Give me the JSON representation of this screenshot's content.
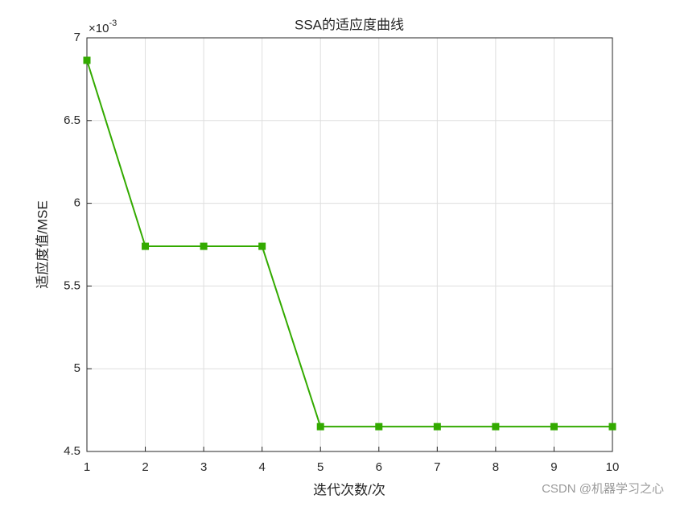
{
  "chart_data": {
    "type": "line",
    "title": "SSA的适应度曲线",
    "xlabel": "迭代次数/次",
    "ylabel": "适应度值/MSE",
    "y_multiplier": {
      "base": "×10",
      "power": "-3"
    },
    "x": [
      1,
      2,
      3,
      4,
      5,
      6,
      7,
      8,
      9,
      10
    ],
    "series": [
      {
        "name": "SSA",
        "color": "#33aa00",
        "marker": "square",
        "values": [
          6.864,
          5.74,
          5.74,
          5.74,
          4.65,
          4.65,
          4.65,
          4.65,
          4.65,
          4.65
        ]
      }
    ],
    "xlim": [
      1,
      10
    ],
    "xticks": [
      1,
      2,
      3,
      4,
      5,
      6,
      7,
      8,
      9,
      10
    ],
    "ylim": [
      4.5,
      7
    ],
    "yticks": [
      4.5,
      5,
      5.5,
      6,
      6.5,
      7
    ],
    "grid": true,
    "watermark": "CSDN @机器学习之心"
  }
}
